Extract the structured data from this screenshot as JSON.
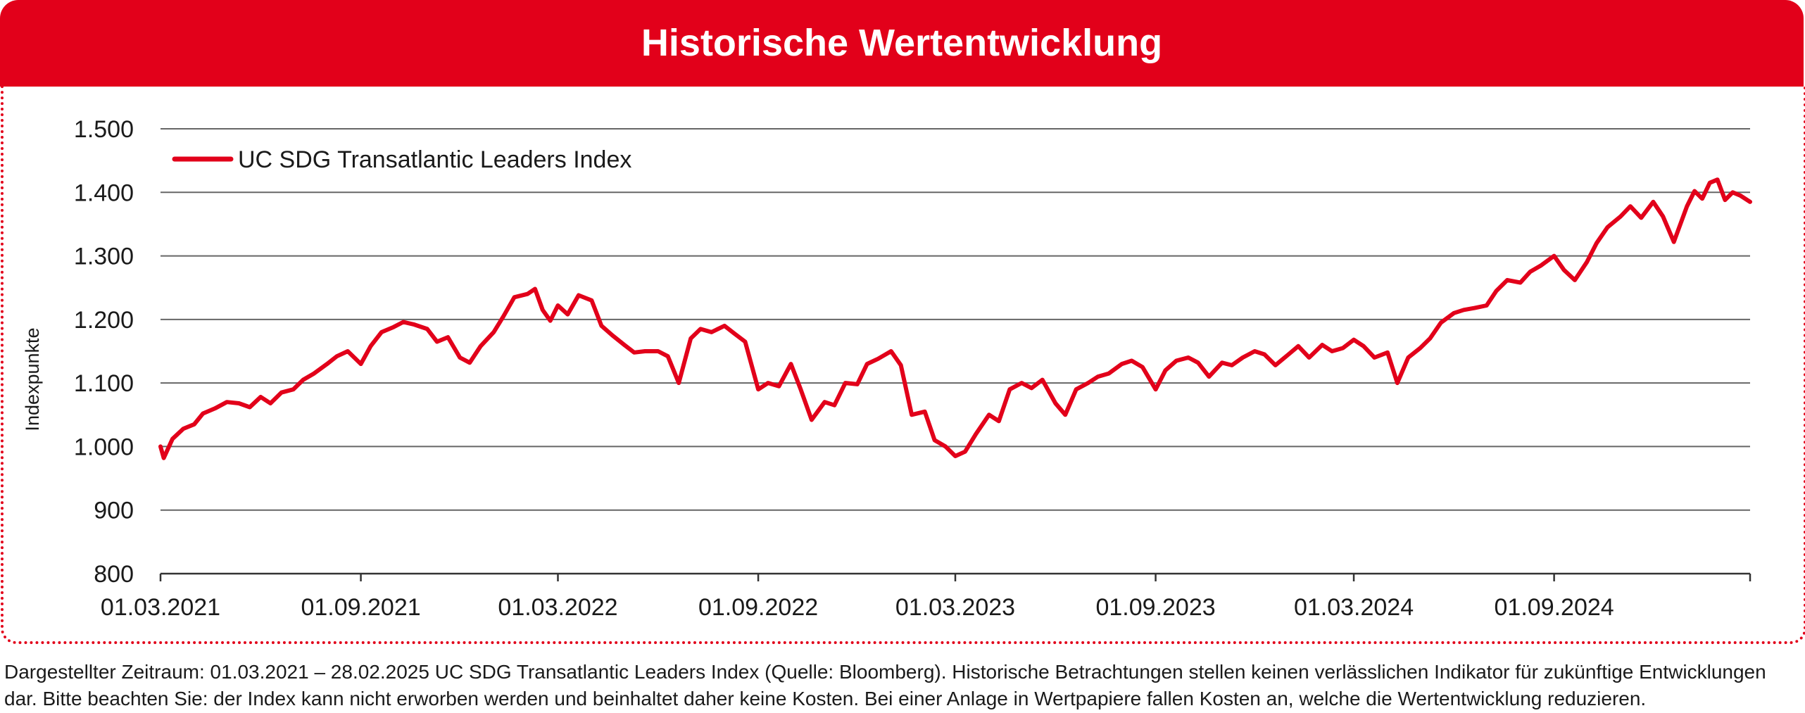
{
  "header": {
    "title": "Historische Wertentwicklung"
  },
  "colors": {
    "accent": "#e2001a",
    "grid": "#666666",
    "axis": "#333333"
  },
  "chart_data": {
    "type": "line",
    "title": "",
    "xlabel": "",
    "ylabel": "Indexpunkte",
    "ylim": [
      800,
      1500
    ],
    "yticks": [
      800,
      900,
      1000,
      1100,
      1200,
      1300,
      1400,
      1500
    ],
    "ytick_labels": [
      "800",
      "900",
      "1.000",
      "1.100",
      "1.200",
      "1.300",
      "1.400",
      "1.500"
    ],
    "xlim": [
      "2021-03-01",
      "2025-02-28"
    ],
    "xticks": [
      "2021-03-01",
      "2021-09-01",
      "2022-03-01",
      "2022-09-01",
      "2023-03-01",
      "2023-09-01",
      "2024-03-01",
      "2024-09-01",
      "2025-02-28"
    ],
    "xtick_labels": [
      "01.03.2021",
      "01.09.2021",
      "01.03.2022",
      "01.09.2022",
      "01.03.2023",
      "01.09.2023",
      "01.03.2024",
      "01.09.2024",
      ""
    ],
    "grid": "horizontal",
    "legend_position": "top-left",
    "series": [
      {
        "name": "UC SDG Transatlantic Leaders Index",
        "color": "#e2001a",
        "points": [
          [
            "2021-03-01",
            1000
          ],
          [
            "2021-03-04",
            982
          ],
          [
            "2021-03-12",
            1012
          ],
          [
            "2021-03-22",
            1028
          ],
          [
            "2021-04-01",
            1035
          ],
          [
            "2021-04-09",
            1052
          ],
          [
            "2021-04-20",
            1060
          ],
          [
            "2021-05-01",
            1070
          ],
          [
            "2021-05-12",
            1068
          ],
          [
            "2021-05-22",
            1062
          ],
          [
            "2021-06-01",
            1078
          ],
          [
            "2021-06-10",
            1068
          ],
          [
            "2021-06-20",
            1085
          ],
          [
            "2021-07-01",
            1090
          ],
          [
            "2021-07-10",
            1105
          ],
          [
            "2021-07-20",
            1115
          ],
          [
            "2021-08-01",
            1130
          ],
          [
            "2021-08-10",
            1142
          ],
          [
            "2021-08-20",
            1150
          ],
          [
            "2021-09-01",
            1130
          ],
          [
            "2021-09-10",
            1158
          ],
          [
            "2021-09-20",
            1180
          ],
          [
            "2021-10-01",
            1188
          ],
          [
            "2021-10-10",
            1196
          ],
          [
            "2021-10-20",
            1192
          ],
          [
            "2021-11-01",
            1185
          ],
          [
            "2021-11-10",
            1165
          ],
          [
            "2021-11-20",
            1172
          ],
          [
            "2021-12-01",
            1140
          ],
          [
            "2021-12-10",
            1132
          ],
          [
            "2021-12-20",
            1158
          ],
          [
            "2022-01-01",
            1180
          ],
          [
            "2022-01-10",
            1205
          ],
          [
            "2022-01-20",
            1235
          ],
          [
            "2022-02-01",
            1240
          ],
          [
            "2022-02-08",
            1248
          ],
          [
            "2022-02-15",
            1215
          ],
          [
            "2022-02-22",
            1198
          ],
          [
            "2022-03-01",
            1222
          ],
          [
            "2022-03-10",
            1208
          ],
          [
            "2022-03-20",
            1238
          ],
          [
            "2022-04-01",
            1230
          ],
          [
            "2022-04-10",
            1190
          ],
          [
            "2022-04-20",
            1175
          ],
          [
            "2022-05-01",
            1160
          ],
          [
            "2022-05-10",
            1148
          ],
          [
            "2022-05-20",
            1150
          ],
          [
            "2022-06-01",
            1150
          ],
          [
            "2022-06-10",
            1142
          ],
          [
            "2022-06-20",
            1100
          ],
          [
            "2022-07-01",
            1170
          ],
          [
            "2022-07-10",
            1185
          ],
          [
            "2022-07-20",
            1180
          ],
          [
            "2022-08-01",
            1190
          ],
          [
            "2022-08-10",
            1178
          ],
          [
            "2022-08-20",
            1165
          ],
          [
            "2022-09-01",
            1090
          ],
          [
            "2022-09-10",
            1100
          ],
          [
            "2022-09-20",
            1095
          ],
          [
            "2022-10-01",
            1130
          ],
          [
            "2022-10-10",
            1090
          ],
          [
            "2022-10-20",
            1042
          ],
          [
            "2022-11-01",
            1070
          ],
          [
            "2022-11-10",
            1065
          ],
          [
            "2022-11-20",
            1100
          ],
          [
            "2022-12-01",
            1098
          ],
          [
            "2022-12-10",
            1130
          ],
          [
            "2022-12-20",
            1138
          ],
          [
            "2023-01-01",
            1150
          ],
          [
            "2023-01-10",
            1128
          ],
          [
            "2023-01-20",
            1050
          ],
          [
            "2023-02-01",
            1055
          ],
          [
            "2023-02-10",
            1010
          ],
          [
            "2023-02-20",
            1000
          ],
          [
            "2023-03-01",
            985
          ],
          [
            "2023-03-10",
            992
          ],
          [
            "2023-03-20",
            1020
          ],
          [
            "2023-04-01",
            1050
          ],
          [
            "2023-04-10",
            1040
          ],
          [
            "2023-04-20",
            1090
          ],
          [
            "2023-05-01",
            1100
          ],
          [
            "2023-05-10",
            1092
          ],
          [
            "2023-05-20",
            1105
          ],
          [
            "2023-06-01",
            1068
          ],
          [
            "2023-06-10",
            1050
          ],
          [
            "2023-06-20",
            1090
          ],
          [
            "2023-07-01",
            1100
          ],
          [
            "2023-07-10",
            1110
          ],
          [
            "2023-07-20",
            1115
          ],
          [
            "2023-08-01",
            1130
          ],
          [
            "2023-08-10",
            1135
          ],
          [
            "2023-08-20",
            1125
          ],
          [
            "2023-09-01",
            1090
          ],
          [
            "2023-09-10",
            1120
          ],
          [
            "2023-09-20",
            1135
          ],
          [
            "2023-10-01",
            1140
          ],
          [
            "2023-10-10",
            1132
          ],
          [
            "2023-10-20",
            1110
          ],
          [
            "2023-11-01",
            1132
          ],
          [
            "2023-11-10",
            1128
          ],
          [
            "2023-11-20",
            1140
          ],
          [
            "2023-12-01",
            1150
          ],
          [
            "2023-12-10",
            1145
          ],
          [
            "2023-12-20",
            1128
          ],
          [
            "2024-01-01",
            1145
          ],
          [
            "2024-01-10",
            1158
          ],
          [
            "2024-01-20",
            1140
          ],
          [
            "2024-02-01",
            1160
          ],
          [
            "2024-02-10",
            1150
          ],
          [
            "2024-02-20",
            1155
          ],
          [
            "2024-03-01",
            1168
          ],
          [
            "2024-03-10",
            1158
          ],
          [
            "2024-03-20",
            1140
          ],
          [
            "2024-04-01",
            1148
          ],
          [
            "2024-04-10",
            1100
          ],
          [
            "2024-04-20",
            1140
          ],
          [
            "2024-05-01",
            1155
          ],
          [
            "2024-05-10",
            1170
          ],
          [
            "2024-05-20",
            1195
          ],
          [
            "2024-06-01",
            1210
          ],
          [
            "2024-06-10",
            1215
          ],
          [
            "2024-06-20",
            1218
          ],
          [
            "2024-07-01",
            1222
          ],
          [
            "2024-07-10",
            1245
          ],
          [
            "2024-07-20",
            1262
          ],
          [
            "2024-08-01",
            1258
          ],
          [
            "2024-08-10",
            1275
          ],
          [
            "2024-08-20",
            1285
          ],
          [
            "2024-09-01",
            1300
          ],
          [
            "2024-09-10",
            1278
          ],
          [
            "2024-09-20",
            1262
          ],
          [
            "2024-10-01",
            1290
          ],
          [
            "2024-10-10",
            1320
          ],
          [
            "2024-10-20",
            1345
          ],
          [
            "2024-11-01",
            1362
          ],
          [
            "2024-11-10",
            1378
          ],
          [
            "2024-11-20",
            1360
          ],
          [
            "2024-12-01",
            1385
          ],
          [
            "2024-12-10",
            1362
          ],
          [
            "2024-12-20",
            1322
          ],
          [
            "2025-01-01",
            1378
          ],
          [
            "2025-01-08",
            1402
          ],
          [
            "2025-01-15",
            1390
          ],
          [
            "2025-01-22",
            1415
          ],
          [
            "2025-01-29",
            1420
          ],
          [
            "2025-02-05",
            1388
          ],
          [
            "2025-02-12",
            1400
          ],
          [
            "2025-02-19",
            1395
          ],
          [
            "2025-02-28",
            1385
          ]
        ]
      }
    ]
  },
  "footnote": {
    "line1": "Dargestellter Zeitraum: 01.03.2021 – 28.02.2025 UC SDG Transatlantic Leaders Index (Quelle: Bloomberg). Historische Betrachtungen stellen keinen verlässlichen Indikator für zukünftige Entwicklungen",
    "line2": "dar. Bitte beachten Sie: der Index kann nicht erworben werden und beinhaltet daher keine Kosten. Bei einer Anlage in Wertpapiere fallen Kosten an, welche die Wertentwicklung reduzieren."
  }
}
